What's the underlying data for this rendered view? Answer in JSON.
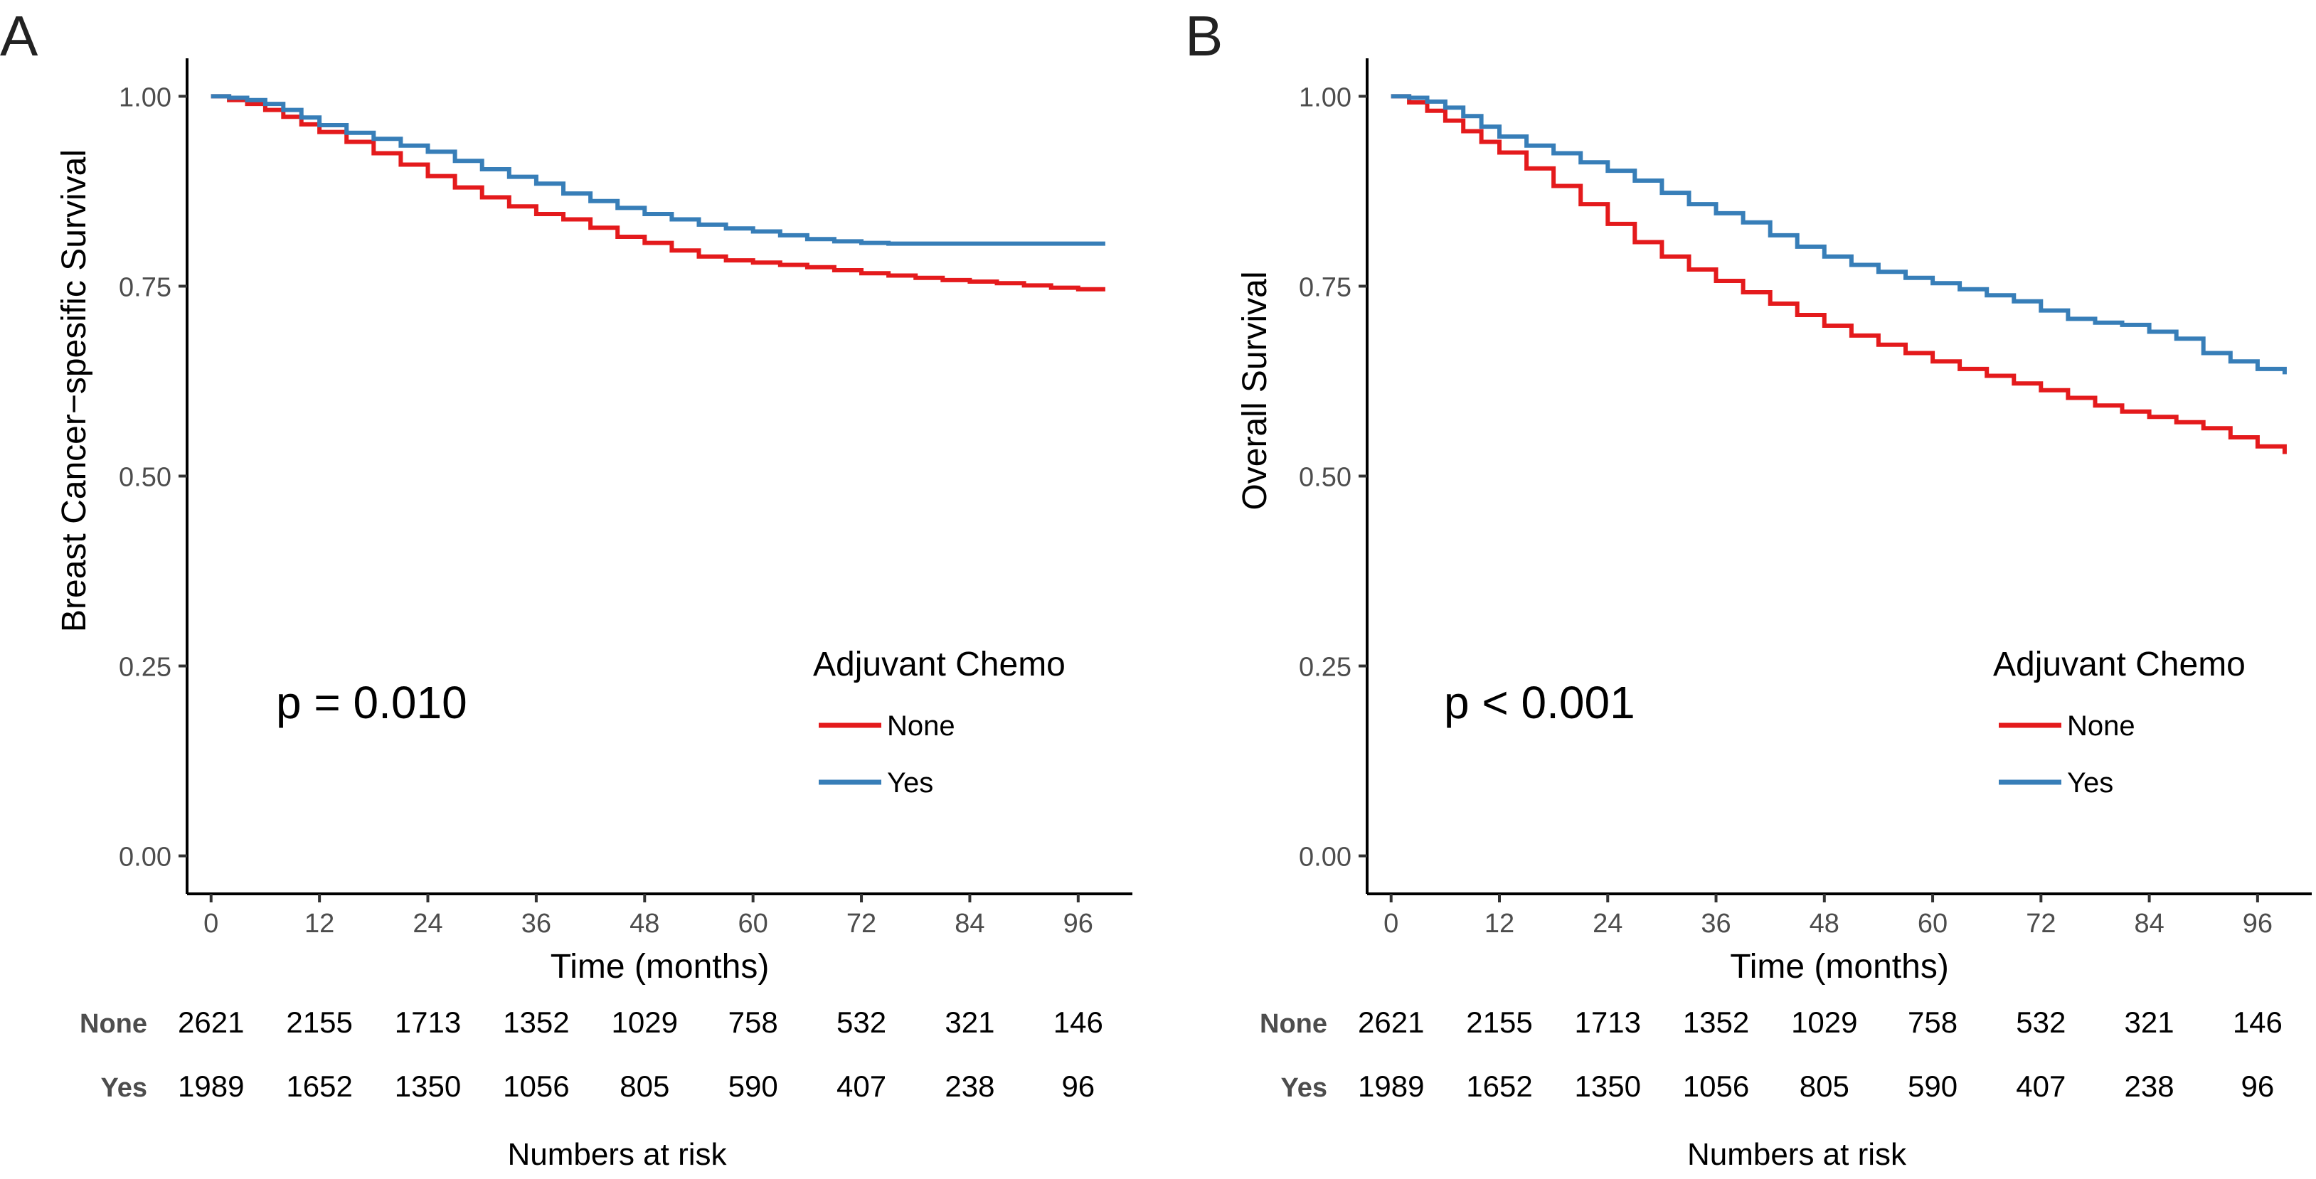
{
  "figure": {
    "panels": [
      {
        "label": "A",
        "p_value": "p = 0.010"
      },
      {
        "label": "B",
        "p_value": "p < 0.001"
      }
    ]
  },
  "colors": {
    "none": "#e41a1c",
    "yes": "#377eb8"
  },
  "chart_data": [
    {
      "type": "line",
      "panel": "A",
      "xlabel": "Time (months)",
      "ylabel": "Breast Cancer−spesific Survival",
      "xlim": [
        -2.5,
        102
      ],
      "ylim": [
        -0.05,
        1.05
      ],
      "xticks": [
        "0",
        "12",
        "24",
        "36",
        "48",
        "60",
        "72",
        "84",
        "96"
      ],
      "yticks": [
        "0.00",
        "0.25",
        "0.50",
        "0.75",
        "1.00"
      ],
      "legend_title": "Adjuvant Chemo",
      "legend_position": "right",
      "annotation": "p = 0.010",
      "x": [
        0,
        2,
        4,
        6,
        8,
        10,
        12,
        15,
        18,
        21,
        24,
        27,
        30,
        33,
        36,
        39,
        42,
        45,
        48,
        51,
        54,
        57,
        60,
        63,
        66,
        69,
        72,
        75,
        78,
        81,
        84,
        87,
        90,
        93,
        96,
        99
      ],
      "series": [
        {
          "name": "None",
          "color": "#e41a1c",
          "values": [
            1.0,
            0.995,
            0.99,
            0.982,
            0.973,
            0.963,
            0.953,
            0.94,
            0.925,
            0.91,
            0.895,
            0.88,
            0.867,
            0.855,
            0.845,
            0.838,
            0.827,
            0.815,
            0.807,
            0.797,
            0.789,
            0.784,
            0.781,
            0.778,
            0.775,
            0.771,
            0.767,
            0.764,
            0.761,
            0.758,
            0.756,
            0.754,
            0.751,
            0.748,
            0.746,
            0.746
          ]
        },
        {
          "name": "Yes",
          "color": "#377eb8",
          "values": [
            1.0,
            0.998,
            0.995,
            0.99,
            0.982,
            0.972,
            0.962,
            0.952,
            0.944,
            0.935,
            0.927,
            0.915,
            0.904,
            0.894,
            0.885,
            0.872,
            0.862,
            0.853,
            0.845,
            0.838,
            0.831,
            0.826,
            0.822,
            0.817,
            0.812,
            0.809,
            0.807,
            0.806,
            0.806,
            0.806,
            0.806,
            0.806,
            0.806,
            0.806,
            0.806,
            0.806
          ]
        }
      ],
      "risk_table": {
        "title": "Numbers at risk",
        "rows": [
          {
            "label": "None",
            "values": [
              "2621",
              "2155",
              "1713",
              "1352",
              "1029",
              "758",
              "532",
              "321",
              "146"
            ]
          },
          {
            "label": "Yes",
            "values": [
              "1989",
              "1652",
              "1350",
              "1056",
              "805",
              "590",
              "407",
              "238",
              "96"
            ]
          }
        ]
      }
    },
    {
      "type": "line",
      "panel": "B",
      "xlabel": "Time (months)",
      "ylabel": "Overall Survival",
      "xlim": [
        -2.5,
        102
      ],
      "ylim": [
        -0.05,
        1.05
      ],
      "xticks": [
        "0",
        "12",
        "24",
        "36",
        "48",
        "60",
        "72",
        "84",
        "96"
      ],
      "yticks": [
        "0.00",
        "0.25",
        "0.50",
        "0.75",
        "1.00"
      ],
      "legend_title": "Adjuvant Chemo",
      "legend_position": "right",
      "annotation": "p < 0.001",
      "x": [
        0,
        2,
        4,
        6,
        8,
        10,
        12,
        15,
        18,
        21,
        24,
        27,
        30,
        33,
        36,
        39,
        42,
        45,
        48,
        51,
        54,
        57,
        60,
        63,
        66,
        69,
        72,
        75,
        78,
        81,
        84,
        87,
        90,
        93,
        96,
        99
      ],
      "series": [
        {
          "name": "None",
          "color": "#e41a1c",
          "values": [
            1.0,
            0.992,
            0.981,
            0.968,
            0.954,
            0.94,
            0.926,
            0.905,
            0.882,
            0.858,
            0.832,
            0.808,
            0.789,
            0.772,
            0.757,
            0.742,
            0.727,
            0.712,
            0.698,
            0.685,
            0.673,
            0.662,
            0.651,
            0.641,
            0.632,
            0.622,
            0.613,
            0.603,
            0.593,
            0.585,
            0.578,
            0.571,
            0.563,
            0.551,
            0.539,
            0.529
          ]
        },
        {
          "name": "Yes",
          "color": "#377eb8",
          "values": [
            1.0,
            0.998,
            0.993,
            0.985,
            0.974,
            0.96,
            0.947,
            0.935,
            0.925,
            0.913,
            0.902,
            0.889,
            0.873,
            0.858,
            0.846,
            0.834,
            0.817,
            0.802,
            0.789,
            0.778,
            0.769,
            0.761,
            0.754,
            0.746,
            0.738,
            0.73,
            0.718,
            0.707,
            0.702,
            0.699,
            0.69,
            0.681,
            0.662,
            0.651,
            0.641,
            0.634
          ]
        }
      ],
      "risk_table": {
        "title": "Numbers at risk",
        "rows": [
          {
            "label": "None",
            "values": [
              "2621",
              "2155",
              "1713",
              "1352",
              "1029",
              "758",
              "532",
              "321",
              "146"
            ]
          },
          {
            "label": "Yes",
            "values": [
              "1989",
              "1652",
              "1350",
              "1056",
              "805",
              "590",
              "407",
              "238",
              "96"
            ]
          }
        ]
      }
    }
  ]
}
